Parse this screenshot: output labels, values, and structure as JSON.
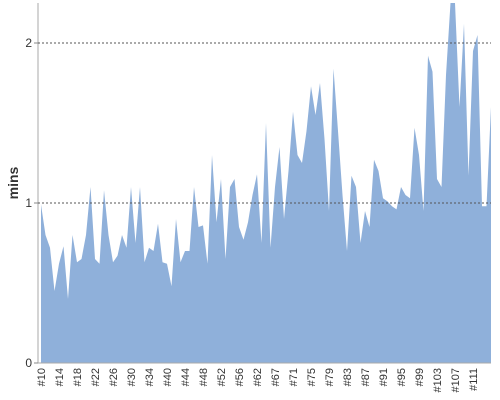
{
  "chart_data": {
    "type": "area",
    "ylabel": "mins",
    "color": "#8fb0da",
    "categories": [
      "#10",
      null,
      null,
      null,
      "#14",
      null,
      null,
      null,
      "#18",
      null,
      null,
      null,
      "#22",
      null,
      null,
      null,
      "#26",
      null,
      null,
      null,
      "#30",
      null,
      null,
      null,
      "#34",
      null,
      null,
      null,
      "#40",
      null,
      null,
      null,
      "#44",
      null,
      null,
      null,
      "#48",
      null,
      null,
      null,
      "#52",
      null,
      null,
      null,
      "#56",
      null,
      null,
      null,
      "#62",
      null,
      null,
      null,
      "#67",
      null,
      null,
      null,
      "#71",
      null,
      null,
      null,
      "#75",
      null,
      null,
      null,
      "#79",
      null,
      null,
      null,
      "#83",
      null,
      null,
      null,
      "#87",
      null,
      null,
      null,
      "#91",
      null,
      null,
      null,
      "#95",
      null,
      null,
      null,
      "#99",
      null,
      null,
      null,
      "#103",
      null,
      null,
      null,
      "#107",
      null,
      null,
      null,
      "#111",
      null,
      null,
      null,
      null
    ],
    "values": [
      0.99,
      0.8,
      0.72,
      0.45,
      0.62,
      0.73,
      0.4,
      0.8,
      0.63,
      0.65,
      0.8,
      1.1,
      0.65,
      0.62,
      1.08,
      0.8,
      0.63,
      0.67,
      0.8,
      0.72,
      1.1,
      0.75,
      1.1,
      0.63,
      0.72,
      0.7,
      0.87,
      0.63,
      0.62,
      0.48,
      0.9,
      0.63,
      0.7,
      0.7,
      1.1,
      0.85,
      0.86,
      0.62,
      1.3,
      0.88,
      1.15,
      0.65,
      1.1,
      1.15,
      0.85,
      0.77,
      0.88,
      1.05,
      1.18,
      0.75,
      1.5,
      0.72,
      1.1,
      1.35,
      0.9,
      1.2,
      1.57,
      1.3,
      1.25,
      1.45,
      1.73,
      1.55,
      1.75,
      1.4,
      0.95,
      1.84,
      1.45,
      1.05,
      0.7,
      1.17,
      1.1,
      0.75,
      0.95,
      0.85,
      1.27,
      1.2,
      1.03,
      1.01,
      0.98,
      0.96,
      1.1,
      1.05,
      1.03,
      1.47,
      1.3,
      0.95,
      1.92,
      1.82,
      1.15,
      1.1,
      1.8,
      2.25,
      2.25,
      1.6,
      2.12,
      1.17,
      1.95,
      2.05,
      0.98,
      0.98,
      1.6
    ],
    "ylim": [
      0,
      2.25
    ],
    "yticks": [
      0,
      1,
      2
    ],
    "grid": true
  }
}
